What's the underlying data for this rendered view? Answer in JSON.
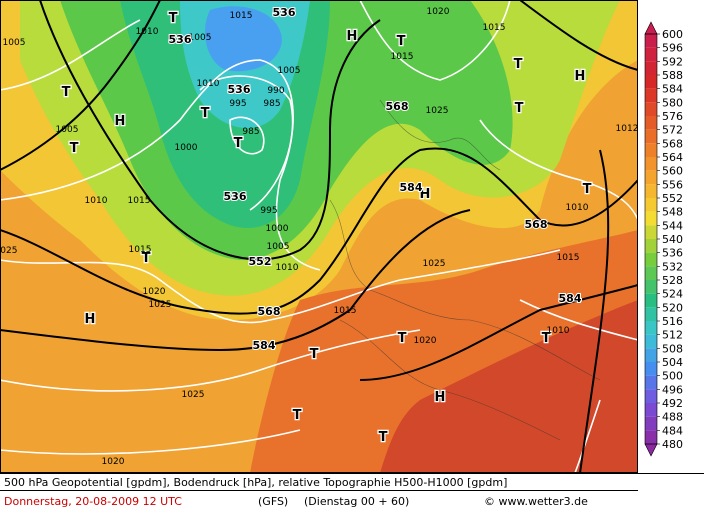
{
  "map": {
    "systems": [
      "T",
      "H",
      "T",
      "H",
      "T",
      "H",
      "T",
      "T",
      "T",
      "T",
      "T",
      "H",
      "T",
      "H",
      "T",
      "T",
      "T",
      "H",
      "T",
      "T",
      "T"
    ],
    "pressure_labels": [
      "1015",
      "1020",
      "1010",
      "1005",
      "1015",
      "1005",
      "1015",
      "1010",
      "995",
      "990",
      "985",
      "1025",
      "1005",
      "985",
      "1000",
      "1012",
      "1010",
      "1015",
      "995",
      "1000",
      "1005",
      "1010",
      "1010",
      "1015",
      "1025",
      "1015",
      "1020",
      "1025",
      "1015",
      "1010",
      "1020",
      "1025",
      "1020",
      "1005",
      "1025"
    ],
    "height_labels": [
      "536",
      "536",
      "536",
      "536",
      "568",
      "584",
      "568",
      "552",
      "568",
      "584",
      "584"
    ]
  },
  "colorbar": {
    "ticks": [
      600,
      596,
      592,
      588,
      584,
      580,
      576,
      572,
      568,
      564,
      560,
      556,
      552,
      548,
      544,
      540,
      536,
      532,
      528,
      524,
      520,
      516,
      512,
      508,
      504,
      500,
      496,
      492,
      488,
      484,
      480
    ]
  },
  "footer": {
    "caption": "500 hPa Geopotential [gpdm], Bodendruck [hPa], relative Topographie H500-H1000 [gpdm]",
    "date": "Donnerstag, 20-08-2009  12 UTC",
    "model": "(GFS)",
    "run": "(Dienstag 00 + 60)",
    "credit": "© www.wetter3.de"
  }
}
